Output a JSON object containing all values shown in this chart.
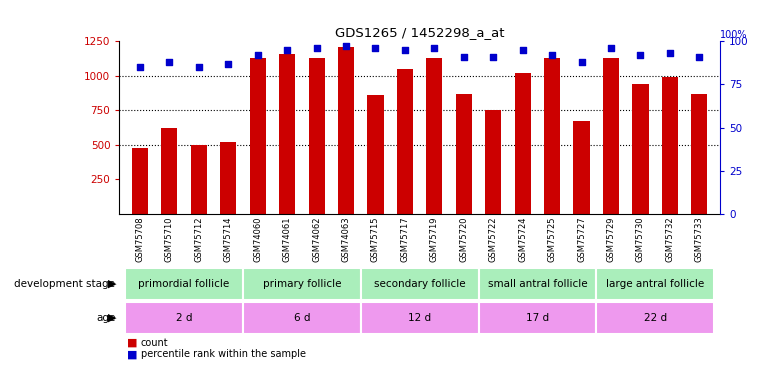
{
  "title": "GDS1265 / 1452298_a_at",
  "samples": [
    "GSM75708",
    "GSM75710",
    "GSM75712",
    "GSM75714",
    "GSM74060",
    "GSM74061",
    "GSM74062",
    "GSM74063",
    "GSM75715",
    "GSM75717",
    "GSM75719",
    "GSM75720",
    "GSM75722",
    "GSM75724",
    "GSM75725",
    "GSM75727",
    "GSM75729",
    "GSM75730",
    "GSM75732",
    "GSM75733"
  ],
  "counts": [
    480,
    620,
    500,
    520,
    1130,
    1160,
    1130,
    1210,
    860,
    1050,
    1130,
    870,
    750,
    1020,
    1130,
    670,
    1130,
    940,
    990,
    870
  ],
  "percentile_ranks": [
    85,
    88,
    85,
    87,
    92,
    95,
    96,
    97,
    96,
    95,
    96,
    91,
    91,
    95,
    92,
    88,
    96,
    92,
    93,
    91
  ],
  "bar_color": "#cc0000",
  "dot_color": "#0000cc",
  "ylim_left": [
    0,
    1250
  ],
  "ylim_right": [
    0,
    100
  ],
  "yticks_left": [
    250,
    500,
    750,
    1000,
    1250
  ],
  "yticks_right": [
    0,
    25,
    50,
    75,
    100
  ],
  "groups": [
    {
      "label": "primordial follicle",
      "start": 0,
      "end": 4
    },
    {
      "label": "primary follicle",
      "start": 4,
      "end": 8
    },
    {
      "label": "secondary follicle",
      "start": 8,
      "end": 12
    },
    {
      "label": "small antral follicle",
      "start": 12,
      "end": 16
    },
    {
      "label": "large antral follicle",
      "start": 16,
      "end": 20
    }
  ],
  "group_color": "#aaeebb",
  "ages": [
    {
      "label": "2 d",
      "start": 0,
      "end": 4
    },
    {
      "label": "6 d",
      "start": 4,
      "end": 8
    },
    {
      "label": "12 d",
      "start": 8,
      "end": 12
    },
    {
      "label": "17 d",
      "start": 12,
      "end": 16
    },
    {
      "label": "22 d",
      "start": 16,
      "end": 20
    }
  ],
  "age_color": "#ee99ee",
  "bg_color": "#ffffff",
  "tick_color_left": "#cc0000",
  "tick_color_right": "#0000cc",
  "legend": [
    "count",
    "percentile rank within the sample"
  ],
  "legend_colors": [
    "#cc0000",
    "#0000cc"
  ]
}
